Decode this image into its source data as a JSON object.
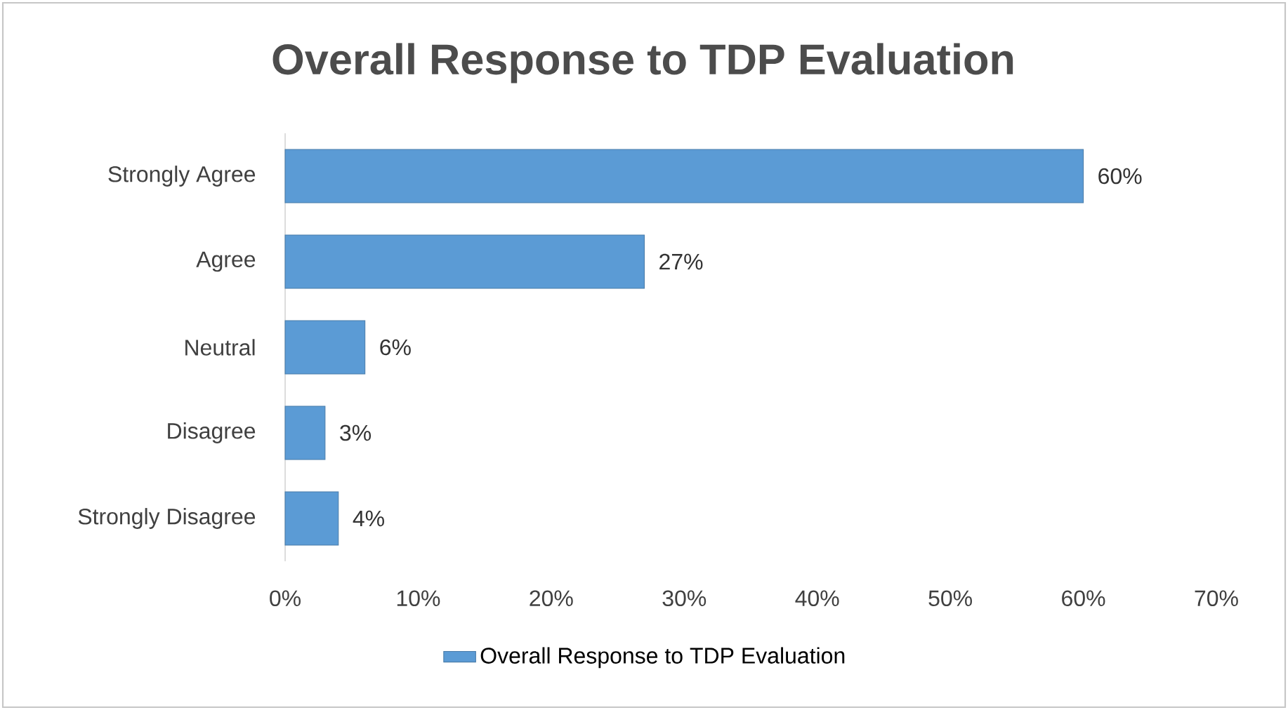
{
  "chart_data": {
    "type": "bar",
    "orientation": "horizontal",
    "title": "Overall Response to TDP Evaluation",
    "categories": [
      "Strongly Agree",
      "Agree",
      "Neutral",
      "Disagree",
      "Strongly Disagree"
    ],
    "series": [
      {
        "name": "Overall Response to TDP Evaluation",
        "color": "#5b9bd5",
        "values": [
          60,
          27,
          6,
          3,
          4
        ],
        "value_labels": [
          "60%",
          "27%",
          "6%",
          "3%",
          "4%"
        ]
      }
    ],
    "xlim": [
      0,
      70
    ],
    "xticks": [
      {
        "value": 0,
        "label": "0%"
      },
      {
        "value": 10,
        "label": "10%"
      },
      {
        "value": 20,
        "label": "20%"
      },
      {
        "value": 30,
        "label": "30%"
      },
      {
        "value": 40,
        "label": "40%"
      },
      {
        "value": 50,
        "label": "50%"
      },
      {
        "value": 60,
        "label": "60%"
      },
      {
        "value": 70,
        "label": "70%"
      }
    ],
    "grid": false,
    "legend": "bottom"
  }
}
